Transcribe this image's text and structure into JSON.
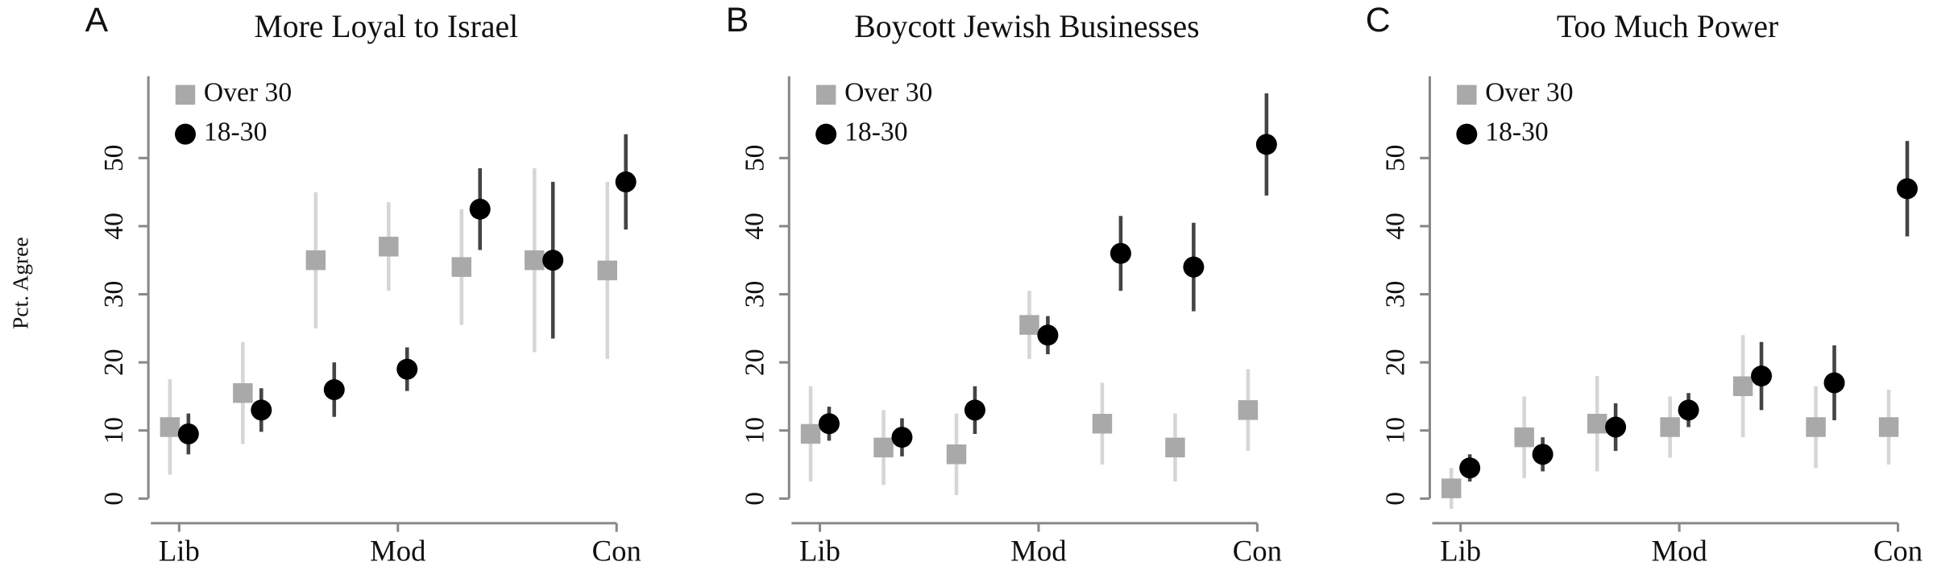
{
  "y_label": "Pct. Agree",
  "chart_data": [
    {
      "type": "dotplot",
      "label": "A",
      "title": "More Loyal to Israel",
      "categories": [
        "Lib",
        null,
        null,
        "Mod",
        null,
        null,
        "Con"
      ],
      "ylim": [
        0,
        62
      ],
      "yticks": [
        0,
        10,
        20,
        30,
        40,
        50
      ],
      "legend": "top-left",
      "series": [
        {
          "name": "Over 30",
          "color": "#a9a9a9",
          "error_color": "#d6d6d6",
          "values": [
            10.5,
            15.5,
            35,
            37,
            34,
            35,
            33.5
          ],
          "errors": [
            7,
            7.5,
            10,
            6.5,
            8.5,
            13.5,
            13
          ]
        },
        {
          "name": "18-30",
          "color": "#000000",
          "error_color": "#444444",
          "values": [
            9.5,
            13,
            16,
            19,
            42.5,
            35,
            46.5
          ],
          "errors": [
            3,
            3.2,
            4,
            3.2,
            6,
            11.5,
            7
          ]
        }
      ]
    },
    {
      "type": "dotplot",
      "label": "B",
      "title": "Boycott Jewish Businesses",
      "categories": [
        "Lib",
        null,
        null,
        "Mod",
        null,
        null,
        "Con"
      ],
      "ylim": [
        0,
        62
      ],
      "yticks": [
        0,
        10,
        20,
        30,
        40,
        50
      ],
      "legend": "top-left",
      "series": [
        {
          "name": "Over 30",
          "color": "#a9a9a9",
          "error_color": "#d6d6d6",
          "values": [
            9.5,
            7.5,
            6.5,
            25.5,
            11,
            7.5,
            13
          ],
          "errors": [
            7,
            5.5,
            6,
            5,
            6,
            5,
            6
          ]
        },
        {
          "name": "18-30",
          "color": "#000000",
          "error_color": "#444444",
          "values": [
            11,
            9,
            13,
            24,
            36,
            34,
            52
          ],
          "errors": [
            2.5,
            2.8,
            3.5,
            2.8,
            5.5,
            6.5,
            7.5
          ]
        }
      ]
    },
    {
      "type": "dotplot",
      "label": "C",
      "title": "Too Much Power",
      "categories": [
        "Lib",
        null,
        null,
        "Mod",
        null,
        null,
        "Con"
      ],
      "ylim": [
        0,
        62
      ],
      "yticks": [
        0,
        10,
        20,
        30,
        40,
        50
      ],
      "legend": "top-left",
      "series": [
        {
          "name": "Over 30",
          "color": "#a9a9a9",
          "error_color": "#d6d6d6",
          "values": [
            1.5,
            9,
            11,
            10.5,
            16.5,
            10.5,
            10.5
          ],
          "errors": [
            3,
            6,
            7,
            4.5,
            7.5,
            6,
            5.5
          ]
        },
        {
          "name": "18-30",
          "color": "#000000",
          "error_color": "#444444",
          "values": [
            4.5,
            6.5,
            10.5,
            13,
            18,
            17,
            45.5
          ],
          "errors": [
            2,
            2.5,
            3.5,
            2.5,
            5,
            5.5,
            7
          ]
        }
      ]
    }
  ]
}
